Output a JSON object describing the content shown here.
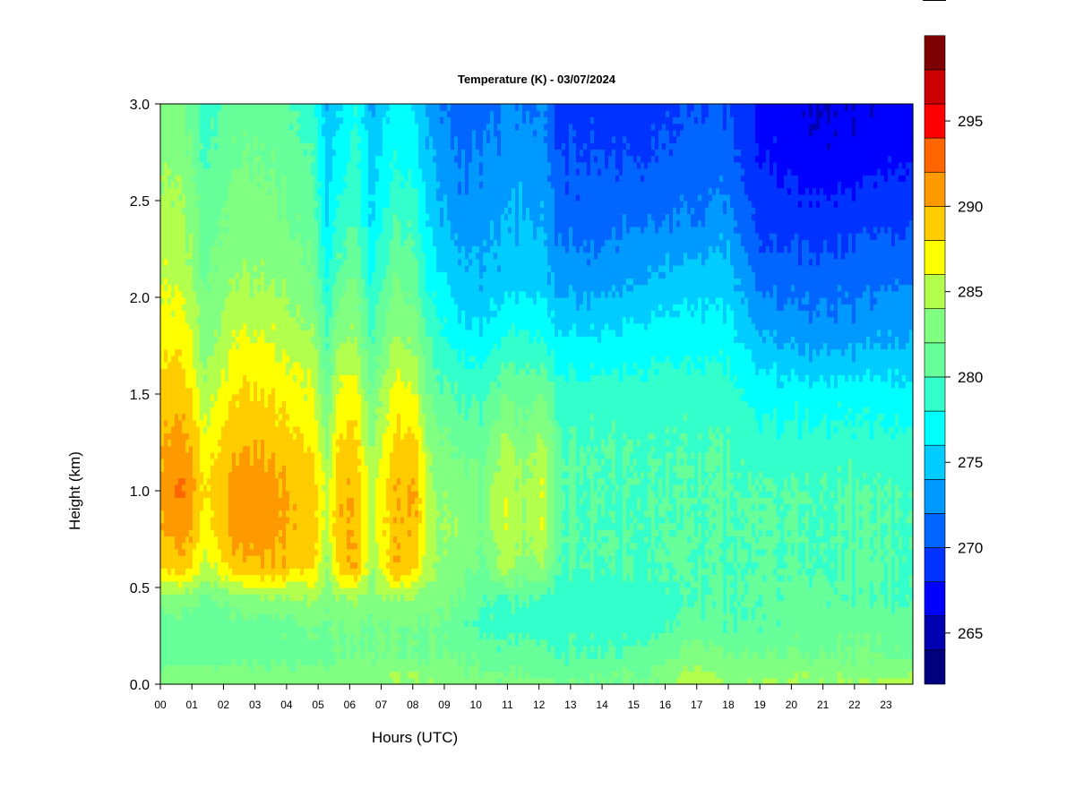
{
  "chart_data": {
    "type": "heatmap",
    "title": "Temperature (K) - 03/07/2024",
    "xlabel": "Hours (UTC)",
    "ylabel": "Height (km)",
    "xlim": [
      0,
      23.85
    ],
    "ylim": [
      0,
      3.0
    ],
    "x_ticks": [
      "00",
      "01",
      "02",
      "03",
      "04",
      "05",
      "06",
      "07",
      "08",
      "09",
      "10",
      "11",
      "12",
      "13",
      "14",
      "15",
      "16",
      "17",
      "18",
      "19",
      "20",
      "21",
      "22",
      "23"
    ],
    "y_ticks": [
      "0.0",
      "0.5",
      "1.0",
      "1.5",
      "2.0",
      "2.5",
      "3.0"
    ],
    "colorbar": {
      "min": 262,
      "max": 296,
      "step": 2,
      "tick_values": [
        265,
        270,
        275,
        280,
        285,
        290,
        295
      ],
      "tick_labels": [
        "265",
        "270",
        "275",
        "280",
        "285",
        "290",
        "295"
      ],
      "colors": [
        "#00007F",
        "#0000B2",
        "#0000FF",
        "#0033FF",
        "#0066FF",
        "#0099FF",
        "#00CCFF",
        "#00FFFF",
        "#33FFCC",
        "#66FF99",
        "#80FF80",
        "#B2FF4D",
        "#FFFF00",
        "#FFCC00",
        "#FF9900",
        "#FF6600",
        "#FF0000",
        "#CC0000",
        "#7F0000"
      ]
    },
    "profile_heights_km": [
      0.0,
      0.05,
      0.15,
      0.3,
      0.45,
      0.6,
      0.8,
      1.0,
      1.2,
      1.5,
      1.8,
      2.1,
      2.4,
      2.7,
      3.0
    ],
    "profiles": [
      {
        "hour": 0.0,
        "temps_k": [
          283,
          283,
          281,
          281,
          283,
          288,
          290,
          291,
          290,
          289,
          287,
          286,
          285,
          284,
          283
        ]
      },
      {
        "hour": 0.8,
        "temps_k": [
          283,
          283,
          281,
          281,
          283,
          289,
          291,
          292,
          291,
          289,
          287,
          285,
          284,
          283,
          282
        ]
      },
      {
        "hour": 1.4,
        "temps_k": [
          283,
          283,
          281,
          281,
          282,
          285,
          287,
          288,
          287,
          285,
          283,
          282,
          281,
          280,
          279
        ]
      },
      {
        "hour": 2.4,
        "temps_k": [
          283,
          283,
          281,
          281,
          283,
          289,
          291,
          291,
          290,
          288,
          286,
          284,
          283,
          282,
          281
        ]
      },
      {
        "hour": 3.5,
        "temps_k": [
          283,
          283,
          281,
          281,
          284,
          290,
          291,
          291,
          290,
          288,
          286,
          284,
          283,
          282,
          281
        ]
      },
      {
        "hour": 4.8,
        "temps_k": [
          283,
          283,
          281,
          282,
          284,
          288,
          289,
          289,
          288,
          286,
          284,
          282,
          281,
          280,
          279
        ]
      },
      {
        "hour": 5.3,
        "temps_k": [
          283,
          283,
          281,
          282,
          283,
          284,
          285,
          285,
          284,
          282,
          280,
          278,
          276,
          275,
          274
        ]
      },
      {
        "hour": 5.7,
        "temps_k": [
          283,
          283,
          282,
          282,
          284,
          289,
          290,
          290,
          289,
          287,
          284,
          281,
          279,
          277,
          276
        ]
      },
      {
        "hour": 6.15,
        "temps_k": [
          283,
          283,
          282,
          282,
          284,
          290,
          290,
          290,
          289,
          287,
          284,
          282,
          280,
          279,
          278
        ]
      },
      {
        "hour": 6.7,
        "temps_k": [
          283,
          283,
          282,
          282,
          283,
          284,
          285,
          285,
          284,
          282,
          280,
          278,
          276,
          275,
          274
        ]
      },
      {
        "hour": 7.5,
        "temps_k": [
          284,
          284,
          282,
          282,
          284,
          290,
          290,
          290,
          289,
          287,
          284,
          282,
          280,
          278,
          277
        ]
      },
      {
        "hour": 8.1,
        "temps_k": [
          284,
          284,
          282,
          282,
          284,
          288,
          290,
          290,
          289,
          286,
          283,
          281,
          279,
          277,
          276
        ]
      },
      {
        "hour": 8.6,
        "temps_k": [
          284,
          283,
          282,
          282,
          283,
          284,
          284,
          284,
          283,
          281,
          279,
          277,
          275,
          274,
          273
        ]
      },
      {
        "hour": 9.5,
        "temps_k": [
          283,
          283,
          282,
          281,
          282,
          283,
          284,
          283,
          282,
          280,
          277,
          275,
          273,
          272,
          271
        ]
      },
      {
        "hour": 10.2,
        "temps_k": [
          283,
          282,
          281,
          279,
          280,
          281,
          282,
          282,
          281,
          279,
          276,
          274,
          273,
          272,
          271
        ]
      },
      {
        "hour": 10.9,
        "temps_k": [
          283,
          282,
          281,
          279,
          280,
          285,
          286,
          286,
          285,
          282,
          278,
          275,
          274,
          273,
          272
        ]
      },
      {
        "hour": 11.5,
        "temps_k": [
          283,
          282,
          281,
          279,
          280,
          283,
          284,
          284,
          283,
          281,
          278,
          275,
          274,
          273,
          272
        ]
      },
      {
        "hour": 12.1,
        "temps_k": [
          283,
          282,
          281,
          279,
          280,
          284,
          286,
          286,
          285,
          282,
          278,
          275,
          274,
          273,
          272
        ]
      },
      {
        "hour": 12.7,
        "temps_k": [
          282,
          281,
          280,
          279,
          279,
          280,
          280,
          280,
          280,
          279,
          276,
          273,
          271,
          270,
          269
        ]
      },
      {
        "hour": 14.0,
        "temps_k": [
          282,
          282,
          280,
          279,
          279,
          280,
          280,
          280,
          280,
          279,
          276,
          273,
          271,
          270,
          269
        ]
      },
      {
        "hour": 15.5,
        "temps_k": [
          282,
          282,
          281,
          279,
          279,
          280,
          280,
          280,
          280,
          279,
          277,
          274,
          272,
          270,
          269
        ]
      },
      {
        "hour": 17.0,
        "temps_k": [
          286,
          285,
          283,
          281,
          280,
          280,
          280,
          280,
          280,
          279,
          277,
          275,
          272,
          271,
          270
        ]
      },
      {
        "hour": 18.0,
        "temps_k": [
          284,
          283,
          282,
          280,
          280,
          280,
          280,
          280,
          280,
          279,
          277,
          275,
          273,
          271,
          270
        ]
      },
      {
        "hour": 19.0,
        "temps_k": [
          284,
          283,
          282,
          280,
          280,
          280,
          280,
          280,
          279,
          277,
          274,
          271,
          269,
          268,
          267
        ]
      },
      {
        "hour": 20.5,
        "temps_k": [
          284,
          284,
          282,
          281,
          281,
          280,
          280,
          280,
          279,
          277,
          273,
          271,
          269,
          267,
          266
        ]
      },
      {
        "hour": 22.0,
        "temps_k": [
          284,
          283,
          282,
          281,
          280,
          280,
          280,
          280,
          279,
          277,
          273,
          271,
          269,
          267,
          266
        ]
      },
      {
        "hour": 23.85,
        "temps_k": [
          285,
          284,
          282,
          281,
          280,
          280,
          280,
          280,
          279,
          277,
          274,
          272,
          270,
          268,
          267
        ]
      }
    ]
  }
}
